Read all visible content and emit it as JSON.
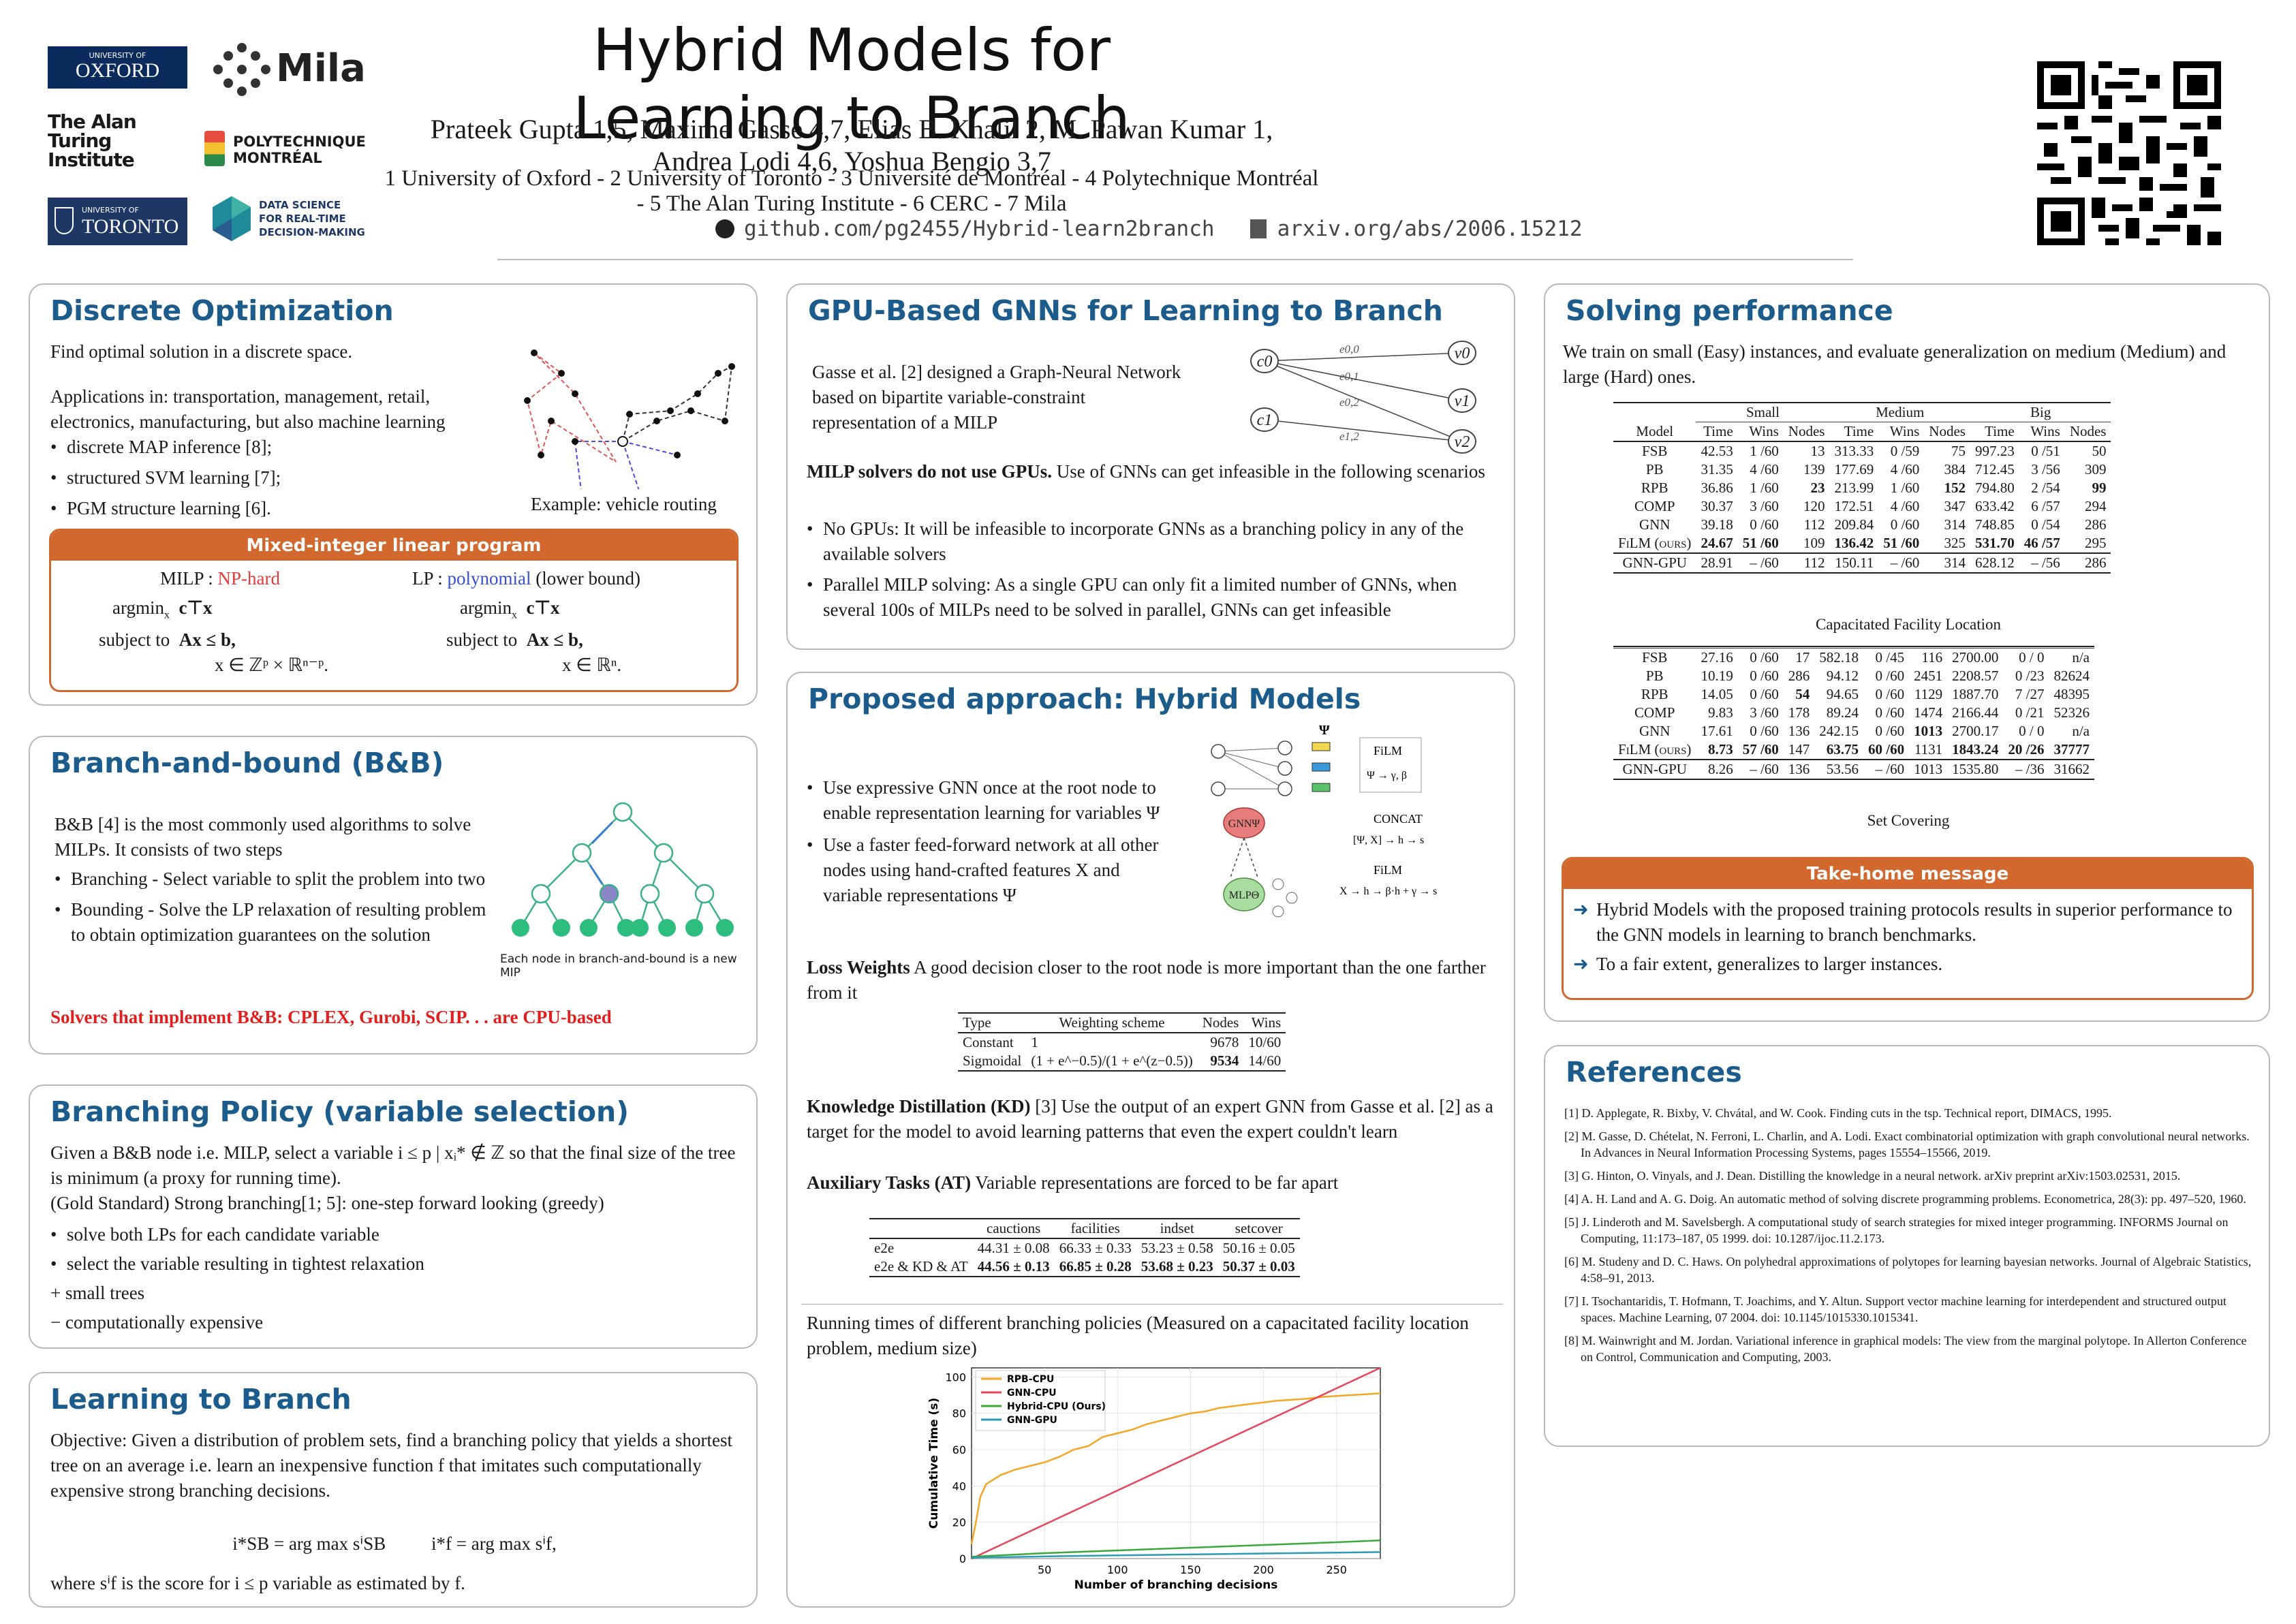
{
  "title": "Hybrid Models for Learning to Branch",
  "authors": "Prateek Gupta 1,5, Maxime Gasse 4,7, Elias B. Khalil 2, M. Pawan Kumar 1, Andrea Lodi 4,6, Yoshua Bengio 3,7",
  "affiliations": "1 University of Oxford - 2 University of Toronto - 3 Université de Montréal - 4 Polytechnique Montréal - 5 The Alan Turing Institute - 6 CERC - 7 Mila",
  "links": {
    "github": "github.com/pg2455/Hybrid-learn2branch",
    "arxiv": "arxiv.org/abs/2006.15212"
  },
  "logos": {
    "oxford_small": "UNIVERSITY OF",
    "oxford": "OXFORD",
    "mila": "Mila",
    "turing": "The Alan Turing Institute",
    "poly1": "POLYTECHNIQUE",
    "poly2": "MONTRÉAL",
    "toronto_small": "UNIVERSITY OF",
    "toronto": "TORONTO",
    "ds1": "DATA SCIENCE",
    "ds2": "FOR REAL-TIME",
    "ds3": "DECISION-MAKING"
  },
  "discrete": {
    "title": "Discrete Optimization",
    "intro": "Find optimal solution in a discrete space.",
    "apps": "Applications in: transportation, management, retail, electronics, manufacturing, but also machine learning",
    "bullets": [
      "discrete MAP inference [8];",
      "structured SVM learning [7];",
      "PGM structure learning [6]."
    ],
    "caption": "Example: vehicle routing",
    "milp_box": {
      "title": "Mixed-integer linear program",
      "milp_label": "MILP :",
      "milp_hard": "NP-hard",
      "lp_label": "LP :",
      "lp_poly": "polynomial",
      "lp_note": "(lower bound)",
      "argmin": "argmin",
      "obj": "c⊤x",
      "subject": "subject to",
      "constr": "Ax ≤ b,",
      "milp_domain": "x ∈ ℤᵖ × ℝⁿ⁻ᵖ.",
      "lp_domain": "x ∈ ℝⁿ."
    }
  },
  "bnb": {
    "title": "Branch-and-bound (B&B)",
    "intro": "B&B [4] is the most commonly used algorithms to solve MILPs. It consists of two steps",
    "bullets": [
      "Branching - Select variable to split the problem into two",
      "Bounding - Solve the LP relaxation of resulting problem to obtain optimization guarantees on the solution"
    ],
    "caption": "Each node in branch-and-bound is a new MIP",
    "warning": "Solvers that implement B&B: CPLEX, Gurobi, SCIP. . . are CPU-based"
  },
  "policy": {
    "title": "Branching Policy (variable selection)",
    "intro": "Given a B&B node i.e. MILP, select a variable i ≤ p | xᵢ* ∉ ℤ so that the final size of the tree is minimum (a proxy for running time).",
    "gold": "(Gold Standard) Strong branching[1; 5]: one-step forward looking (greedy)",
    "bullets": [
      "solve both LPs for each candidate variable",
      "select the variable resulting in tightest relaxation"
    ],
    "plus": "+ small trees",
    "minus": "− computationally expensive"
  },
  "l2b": {
    "title": "Learning to Branch",
    "objective": "Objective: Given a distribution of problem sets, find a branching policy that yields a shortest tree on an average i.e. learn an inexpensive function f that imitates such computationally expensive strong branching decisions.",
    "formula1": "i*SB = arg max sⁱSB",
    "formula2": "i*f = arg max sⁱf,",
    "footer": "where sⁱf is the score for i ≤ p variable as estimated by f."
  },
  "gnn": {
    "title": "GPU-Based GNNs for Learning to Branch",
    "intro": "Gasse et al. [2] designed a Graph-Neural Network based on bipartite variable-constraint representation of a MILP",
    "nodes": [
      "c0",
      "c1",
      "v0",
      "v1",
      "v2"
    ],
    "edges": [
      "e0,0",
      "e0,1",
      "e0,2",
      "e1,2"
    ],
    "gpu_head": "MILP solvers do not use GPUs.",
    "gpu_text": "Use of GNNs can get infeasible in the following scenarios",
    "bullets": [
      "No GPUs: It will be infeasible to incorporate GNNs as a branching policy in any of the available solvers",
      "Parallel MILP solving: As a single GPU can only fit a limited number of GNNs, when several 100s of MILPs need to be solved in parallel, GNNs can get infeasible"
    ]
  },
  "hybrid": {
    "title": "Proposed approach: Hybrid Models",
    "bullets": [
      "Use expressive GNN once at the root node to enable representation learning for variables Ψ",
      "Use a faster feed-forward network at all other nodes using hand-crafted features X and variable representations Ψ"
    ],
    "diagram": {
      "psi": "Ψ",
      "gnn": "GNNΨ",
      "mlp": "MLPΘ",
      "film1": "FiLM",
      "concat": "CONCAT",
      "film2": "FiLM"
    },
    "loss_head": "Loss Weights",
    "loss_text": "A good decision closer to the root node is more important than the one farther from it",
    "loss_table": {
      "headers": [
        "Type",
        "Weighting scheme",
        "Nodes",
        "Wins"
      ],
      "rows": [
        [
          "Constant",
          "1",
          "9678",
          "10/60"
        ],
        [
          "Sigmoidal",
          "(1 + e^−0.5)/(1 + e^(z−0.5))",
          "9534",
          "14/60"
        ]
      ]
    },
    "kd_head": "Knowledge Distillation (KD)",
    "kd_text": "[3] Use the output of an expert GNN from Gasse et al. [2] as a target for the model to avoid learning patterns that even the expert couldn't learn",
    "at_head": "Auxiliary Tasks (AT)",
    "at_text": "Variable representations are forced to be far apart",
    "aux_table": {
      "headers": [
        "",
        "cauctions",
        "facilities",
        "indset",
        "setcover"
      ],
      "rows": [
        [
          "e2e",
          "44.31 ± 0.08",
          "66.33 ± 0.33",
          "53.23 ± 0.58",
          "50.16 ± 0.05"
        ],
        [
          "e2e & KD & AT",
          "44.56 ± 0.13",
          "66.85 ± 0.28",
          "53.68 ± 0.23",
          "50.37 ± 0.03"
        ]
      ]
    },
    "runtime_caption": "Running times of different branching policies (Measured on a capacitated facility location problem, medium size)"
  },
  "chart_data": {
    "type": "line",
    "title": "",
    "xlabel": "Number of branching decisions",
    "ylabel": "Cumulative Time (s)",
    "xlim": [
      0,
      280
    ],
    "ylim": [
      0,
      105
    ],
    "xticks": [
      50,
      100,
      150,
      200,
      250
    ],
    "yticks": [
      0,
      20,
      40,
      60,
      80,
      100
    ],
    "series": [
      {
        "name": "RPB-CPU",
        "color": "#f5a623",
        "x": [
          0,
          3,
          6,
          10,
          20,
          30,
          40,
          50,
          60,
          70,
          80,
          90,
          100,
          110,
          120,
          130,
          140,
          150,
          160,
          170,
          180,
          190,
          200,
          210,
          220,
          230,
          240,
          250,
          260,
          270,
          280
        ],
        "y": [
          8,
          20,
          34,
          41,
          46,
          49,
          51,
          53,
          56,
          60,
          62,
          67,
          69,
          71,
          74,
          76,
          78,
          80,
          81,
          83,
          84,
          85,
          86,
          87,
          87.5,
          88,
          89,
          89.5,
          90,
          90.5,
          91
        ]
      },
      {
        "name": "GNN-CPU",
        "color": "#e8455a",
        "x": [
          0,
          280
        ],
        "y": [
          0,
          105
        ]
      },
      {
        "name": "Hybrid-CPU (Ours)",
        "color": "#3aa83a",
        "x": [
          0,
          50,
          100,
          150,
          200,
          250,
          280
        ],
        "y": [
          1,
          3,
          4.5,
          6,
          7.5,
          9,
          10
        ]
      },
      {
        "name": "GNN-GPU",
        "color": "#2a9bb5",
        "x": [
          0,
          50,
          100,
          150,
          200,
          250,
          280
        ],
        "y": [
          0.5,
          1.2,
          1.8,
          2.3,
          2.8,
          3.3,
          3.6
        ]
      }
    ]
  },
  "perf": {
    "title": "Solving performance",
    "intro": "We train on small (Easy) instances, and evaluate generalization on medium (Medium) and large (Hard) ones.",
    "groups": [
      "Small",
      "Medium",
      "Big"
    ],
    "subheaders": [
      "Model",
      "Time",
      "Wins",
      "Nodes",
      "Time",
      "Wins",
      "Nodes",
      "Time",
      "Wins",
      "Nodes"
    ],
    "table1": [
      [
        "FSB",
        "42.53",
        "1 /60",
        "13",
        "313.33",
        "0 /59",
        "75",
        "997.23",
        "0 /51",
        "50"
      ],
      [
        "PB",
        "31.35",
        "4 /60",
        "139",
        "177.69",
        "4 /60",
        "384",
        "712.45",
        "3 /56",
        "309"
      ],
      [
        "RPB",
        "36.86",
        "1 /60",
        "23",
        "213.99",
        "1 /60",
        "152",
        "794.80",
        "2 /54",
        "99"
      ],
      [
        "COMP",
        "30.37",
        "3 /60",
        "120",
        "172.51",
        "4 /60",
        "347",
        "633.42",
        "6 /57",
        "294"
      ],
      [
        "GNN",
        "39.18",
        "0 /60",
        "112",
        "209.84",
        "0 /60",
        "314",
        "748.85",
        "0 /54",
        "286"
      ],
      [
        "FiLM (ours)",
        "24.67",
        "51 /60",
        "109",
        "136.42",
        "51 /60",
        "325",
        "531.70",
        "46 /57",
        "295"
      ],
      [
        "GNN-GPU",
        "28.91",
        "– /60",
        "112",
        "150.11",
        "– /60",
        "314",
        "628.12",
        "– /56",
        "286"
      ]
    ],
    "caption1": "Capacitated Facility Location",
    "table2": [
      [
        "FSB",
        "27.16",
        "0 /60",
        "17",
        "582.18",
        "0 /45",
        "116",
        "2700.00",
        "0 / 0",
        "n/a"
      ],
      [
        "PB",
        "10.19",
        "0 /60",
        "286",
        "94.12",
        "0 /60",
        "2451",
        "2208.57",
        "0 /23",
        "82624"
      ],
      [
        "RPB",
        "14.05",
        "0 /60",
        "54",
        "94.65",
        "0 /60",
        "1129",
        "1887.70",
        "7 /27",
        "48395"
      ],
      [
        "COMP",
        "9.83",
        "3 /60",
        "178",
        "89.24",
        "0 /60",
        "1474",
        "2166.44",
        "0 /21",
        "52326"
      ],
      [
        "GNN",
        "17.61",
        "0 /60",
        "136",
        "242.15",
        "0 /60",
        "1013",
        "2700.17",
        "0 / 0",
        "n/a"
      ],
      [
        "FiLM (ours)",
        "8.73",
        "57 /60",
        "147",
        "63.75",
        "60 /60",
        "1131",
        "1843.24",
        "20 /26",
        "37777"
      ],
      [
        "GNN-GPU",
        "8.26",
        "– /60",
        "136",
        "53.56",
        "– /60",
        "1013",
        "1535.80",
        "– /36",
        "31662"
      ]
    ],
    "caption2": "Set Covering",
    "takehome_title": "Take-home message",
    "takehome": [
      "Hybrid Models with the proposed training protocols results in superior performance to the GNN models in learning to branch benchmarks.",
      "To a fair extent, generalizes to larger instances."
    ]
  },
  "refs": {
    "title": "References",
    "items": [
      "[1] D. Applegate, R. Bixby, V. Chvátal, and W. Cook. Finding cuts in the tsp. Technical report, DIMACS, 1995.",
      "[2] M. Gasse, D. Chételat, N. Ferroni, L. Charlin, and A. Lodi. Exact combinatorial optimization with graph convolutional neural networks. In Advances in Neural Information Processing Systems, pages 15554–15566, 2019.",
      "[3] G. Hinton, O. Vinyals, and J. Dean. Distilling the knowledge in a neural network. arXiv preprint arXiv:1503.02531, 2015.",
      "[4] A. H. Land and A. G. Doig. An automatic method of solving discrete programming problems. Econometrica, 28(3): pp. 497–520, 1960.",
      "[5] J. Linderoth and M. Savelsbergh. A computational study of search strategies for mixed integer programming. INFORMS Journal on Computing, 11:173–187, 05 1999. doi: 10.1287/ijoc.11.2.173.",
      "[6] M. Studeny and D. C. Haws. On polyhedral approximations of polytopes for learning bayesian networks. Journal of Algebraic Statistics, 4:58–91, 2013.",
      "[7] I. Tsochantaridis, T. Hofmann, T. Joachims, and Y. Altun. Support vector machine learning for interdependent and structured output spaces. Machine Learning, 07 2004. doi: 10.1145/1015330.1015341.",
      "[8] M. Wainwright and M. Jordan. Variational inference in graphical models: The view from the marginal polytope. In Allerton Conference on Control, Communication and Computing, 2003."
    ]
  }
}
